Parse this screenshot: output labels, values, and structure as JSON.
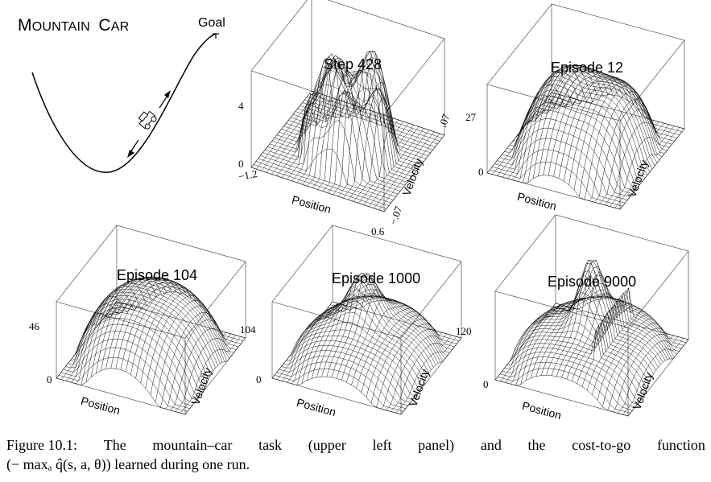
{
  "mountain_car": {
    "title_prefix": "M",
    "title_rest": "OUNTAIN",
    "title_c": "C",
    "title_ar": "AR",
    "goal_label": "Goal"
  },
  "panels": [
    {
      "title": "Step 428",
      "z_max": "4",
      "z_min": "0",
      "x_min": "−1.2",
      "x_max": "0.6",
      "v_max": ".07",
      "v_min": "−.07",
      "x_label": "Position",
      "y_label": "Velocity"
    },
    {
      "title": "Episode 12",
      "z_max": "27",
      "z_min": "0",
      "x_label": "Position",
      "y_label": "Velocity"
    },
    {
      "title": "Episode 104",
      "z_max": "46",
      "z_min": "0",
      "x_label": "Position",
      "y_label": "Velocity"
    },
    {
      "title": "Episode 1000",
      "z_max": "104",
      "z_min": "0",
      "x_label": "Position",
      "y_label": "Velocity"
    },
    {
      "title": "Episode 9000",
      "z_max": "120",
      "z_min": "0",
      "x_label": "Position",
      "y_label": "Velocity"
    }
  ],
  "caption": {
    "label": "Figure 10.1:",
    "line1_words": [
      "The",
      "mountain–car",
      "task",
      "(upper",
      "left",
      "panel)",
      "and",
      "the",
      "cost-to-go",
      "function"
    ],
    "line2": "(− maxₐ q̂(s, a, θ)) learned during one run."
  }
}
